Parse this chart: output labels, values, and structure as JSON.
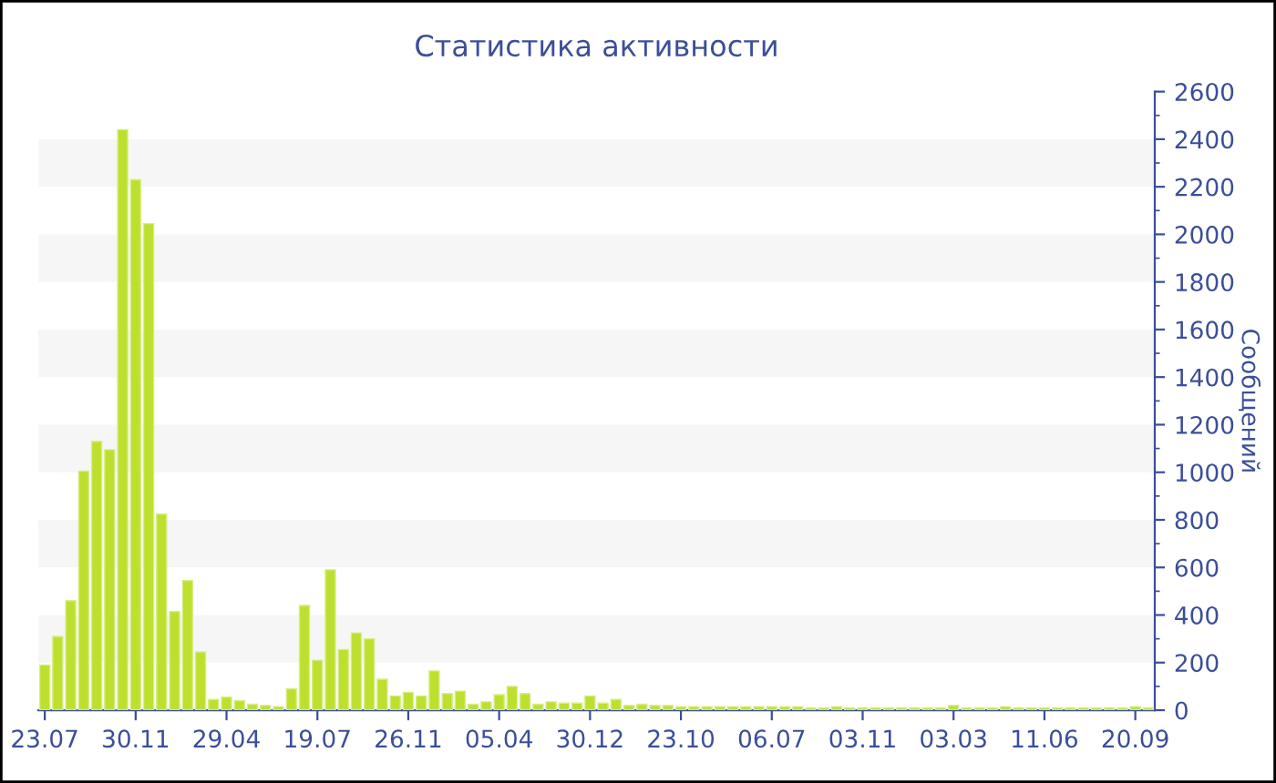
{
  "chart_data": {
    "type": "bar",
    "title": "Статистика активности",
    "ylabel": "Сообщений",
    "categories": [
      "23.07",
      null,
      null,
      null,
      null,
      null,
      null,
      "30.11",
      null,
      null,
      null,
      null,
      null,
      null,
      "29.04",
      null,
      null,
      null,
      null,
      null,
      null,
      "19.07",
      null,
      null,
      null,
      null,
      null,
      null,
      "26.11",
      null,
      null,
      null,
      null,
      null,
      null,
      "05.04",
      null,
      null,
      null,
      null,
      null,
      null,
      "30.12",
      null,
      null,
      null,
      null,
      null,
      null,
      "23.10",
      null,
      null,
      null,
      null,
      null,
      null,
      "06.07",
      null,
      null,
      null,
      null,
      null,
      null,
      "03.11",
      null,
      null,
      null,
      null,
      null,
      null,
      "03.03",
      null,
      null,
      null,
      null,
      null,
      null,
      "11.06",
      null,
      null,
      null,
      null,
      null,
      null,
      "20.09",
      null
    ],
    "values": [
      190,
      310,
      460,
      1005,
      1130,
      1095,
      2440,
      2230,
      2045,
      825,
      415,
      545,
      245,
      45,
      55,
      40,
      25,
      20,
      15,
      90,
      440,
      210,
      590,
      255,
      325,
      300,
      130,
      60,
      75,
      60,
      165,
      70,
      80,
      25,
      35,
      65,
      100,
      70,
      25,
      35,
      30,
      30,
      60,
      30,
      45,
      20,
      25,
      20,
      20,
      15,
      15,
      15,
      15,
      15,
      15,
      15,
      15,
      15,
      15,
      10,
      10,
      15,
      10,
      10,
      10,
      10,
      10,
      10,
      10,
      10,
      20,
      10,
      10,
      10,
      15,
      10,
      10,
      10,
      10,
      10,
      10,
      10,
      10,
      10,
      15,
      10
    ],
    "color": "#bde02f",
    "ylim": [
      0,
      2600
    ],
    "yticks": [
      0,
      200,
      400,
      600,
      800,
      1000,
      1200,
      1400,
      1600,
      1800,
      2000,
      2200,
      2400,
      2600
    ],
    "bands": [
      {
        "axis": "y",
        "from": 200,
        "to": 400,
        "color": "#f6f6f6"
      },
      {
        "axis": "y",
        "from": 600,
        "to": 800,
        "color": "#f6f6f6"
      },
      {
        "axis": "y",
        "from": 1000,
        "to": 1200,
        "color": "#f6f6f6"
      },
      {
        "axis": "y",
        "from": 1400,
        "to": 1600,
        "color": "#f6f6f6"
      },
      {
        "axis": "y",
        "from": 1800,
        "to": 2000,
        "color": "#f6f6f6"
      },
      {
        "axis": "y",
        "from": 2200,
        "to": 2400,
        "color": "#f6f6f6"
      }
    ]
  }
}
